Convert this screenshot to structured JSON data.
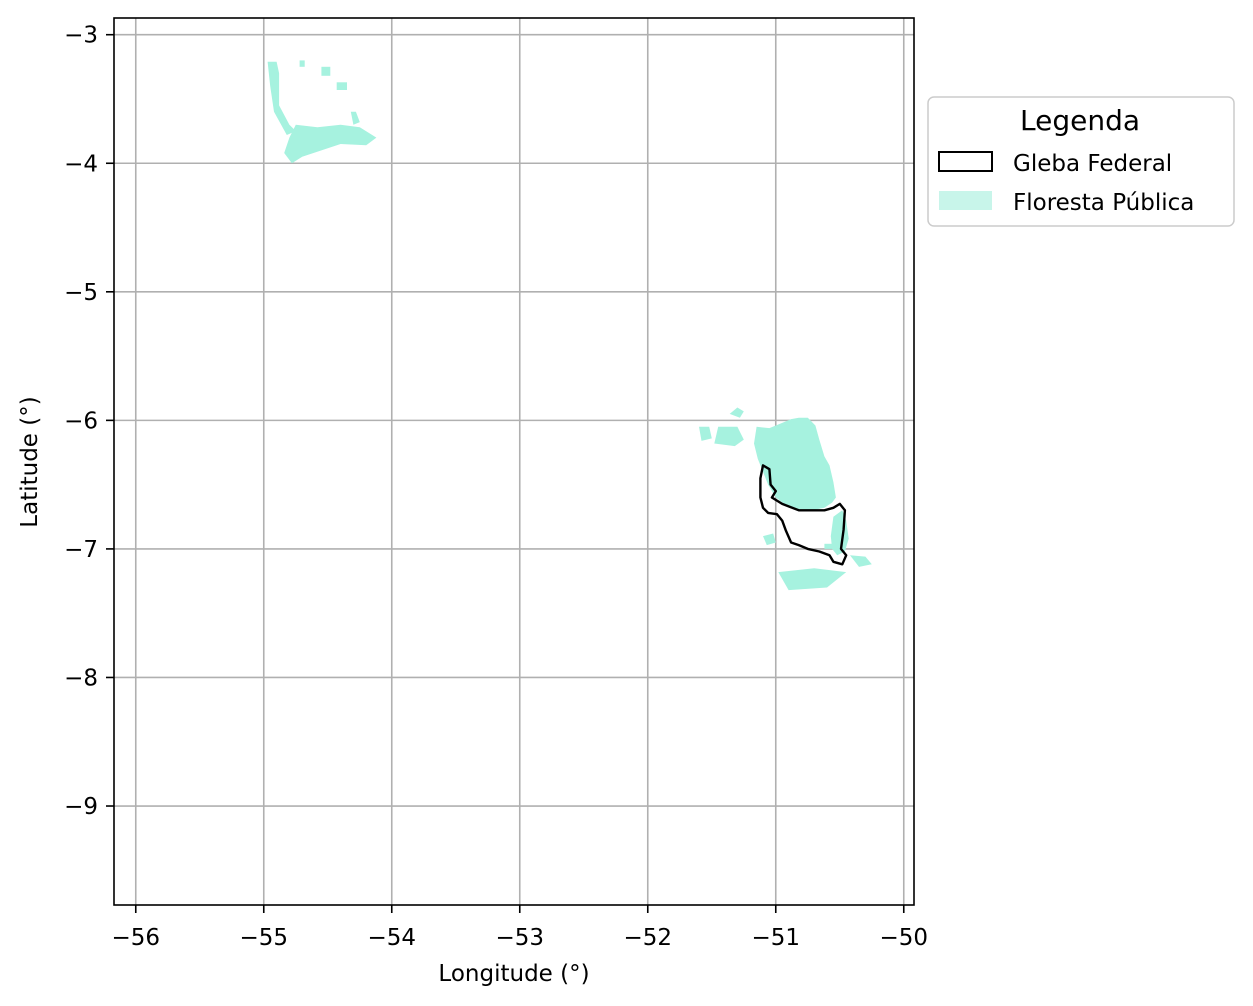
{
  "chart_data": {
    "type": "map",
    "xlabel": "Longitude (°)",
    "ylabel": "Latitude (°)",
    "xlim": [
      -56.17,
      -49.92
    ],
    "ylim": [
      -9.77,
      -2.87
    ],
    "x_ticks": [
      -56,
      -55,
      -54,
      -53,
      -52,
      -51,
      -50
    ],
    "y_ticks": [
      -3,
      -4,
      -5,
      -6,
      -7,
      -8,
      -9
    ],
    "x_tick_labels": [
      "−56",
      "−55",
      "−54",
      "−53",
      "−52",
      "−51",
      "−50"
    ],
    "y_tick_labels": [
      "−3",
      "−4",
      "−5",
      "−6",
      "−7",
      "−8",
      "−9"
    ],
    "grid": true,
    "legend": {
      "title": "Legenda",
      "placement": "outside-right-top",
      "entries": [
        {
          "label": "Gleba Federal",
          "kind": "outline",
          "color": "#000000"
        },
        {
          "label": "Floresta Pública",
          "kind": "fill",
          "color": "#a6f2df"
        }
      ]
    },
    "colors": {
      "floresta_publica": "#a6f2df",
      "floresta_publica_legend": "#c8f5ea",
      "gleba_federal": "#000000",
      "grid": "#b0b0b0"
    },
    "floresta_publica": {
      "main_block": [
        [
          -51.15,
          -6.05
        ],
        [
          -51.05,
          -6.06
        ],
        [
          -51.0,
          -6.04
        ],
        [
          -50.95,
          -6.02
        ],
        [
          -50.88,
          -5.99
        ],
        [
          -50.82,
          -5.98
        ],
        [
          -50.75,
          -5.98
        ],
        [
          -50.69,
          -6.04
        ],
        [
          -50.66,
          -6.15
        ],
        [
          -50.62,
          -6.28
        ],
        [
          -50.58,
          -6.35
        ],
        [
          -50.55,
          -6.48
        ],
        [
          -50.53,
          -6.6
        ],
        [
          -50.56,
          -6.64
        ],
        [
          -50.62,
          -6.68
        ],
        [
          -50.72,
          -6.7
        ],
        [
          -50.82,
          -6.7
        ],
        [
          -50.92,
          -6.66
        ],
        [
          -51.0,
          -6.6
        ],
        [
          -51.06,
          -6.5
        ],
        [
          -51.1,
          -6.4
        ],
        [
          -51.14,
          -6.3
        ],
        [
          -51.17,
          -6.18
        ]
      ],
      "south_tail": [
        [
          -50.55,
          -6.75
        ],
        [
          -50.48,
          -6.7
        ],
        [
          -50.45,
          -6.78
        ],
        [
          -50.43,
          -6.92
        ],
        [
          -50.46,
          -7.02
        ],
        [
          -50.52,
          -7.05
        ],
        [
          -50.56,
          -7.0
        ],
        [
          -50.57,
          -6.9
        ]
      ],
      "north_west_fragments": [
        [
          [
            -54.97,
            -3.21
          ],
          [
            -54.9,
            -3.21
          ],
          [
            -54.88,
            -3.3
          ],
          [
            -54.88,
            -3.55
          ],
          [
            -54.8,
            -3.7
          ],
          [
            -54.75,
            -3.75
          ],
          [
            -54.82,
            -3.78
          ],
          [
            -54.92,
            -3.6
          ],
          [
            -54.95,
            -3.4
          ]
        ],
        [
          [
            -54.75,
            -3.7
          ],
          [
            -54.58,
            -3.72
          ],
          [
            -54.4,
            -3.7
          ],
          [
            -54.25,
            -3.72
          ],
          [
            -54.12,
            -3.8
          ],
          [
            -54.2,
            -3.86
          ],
          [
            -54.4,
            -3.85
          ],
          [
            -54.55,
            -3.9
          ],
          [
            -54.7,
            -3.95
          ],
          [
            -54.78,
            -4.0
          ],
          [
            -54.84,
            -3.92
          ],
          [
            -54.8,
            -3.8
          ]
        ],
        [
          [
            -54.55,
            -3.25
          ],
          [
            -54.48,
            -3.25
          ],
          [
            -54.48,
            -3.32
          ],
          [
            -54.55,
            -3.32
          ]
        ],
        [
          [
            -54.43,
            -3.37
          ],
          [
            -54.35,
            -3.37
          ],
          [
            -54.35,
            -3.43
          ],
          [
            -54.43,
            -3.43
          ]
        ],
        [
          [
            -54.32,
            -3.6
          ],
          [
            -54.28,
            -3.6
          ],
          [
            -54.25,
            -3.68
          ],
          [
            -54.3,
            -3.7
          ]
        ],
        [
          [
            -54.72,
            -3.2
          ],
          [
            -54.68,
            -3.2
          ],
          [
            -54.68,
            -3.25
          ],
          [
            -54.72,
            -3.25
          ]
        ]
      ],
      "east_fragments": [
        [
          [
            -51.36,
            -5.95
          ],
          [
            -51.3,
            -5.9
          ],
          [
            -51.25,
            -5.93
          ],
          [
            -51.28,
            -5.98
          ]
        ],
        [
          [
            -51.45,
            -6.05
          ],
          [
            -51.3,
            -6.05
          ],
          [
            -51.25,
            -6.15
          ],
          [
            -51.32,
            -6.2
          ],
          [
            -51.48,
            -6.18
          ]
        ],
        [
          [
            -51.6,
            -6.05
          ],
          [
            -51.52,
            -6.05
          ],
          [
            -51.5,
            -6.14
          ],
          [
            -51.58,
            -6.16
          ]
        ],
        [
          [
            -50.42,
            -7.05
          ],
          [
            -50.3,
            -7.06
          ],
          [
            -50.25,
            -7.12
          ],
          [
            -50.35,
            -7.14
          ]
        ],
        [
          [
            -50.98,
            -7.18
          ],
          [
            -50.7,
            -7.15
          ],
          [
            -50.45,
            -7.18
          ],
          [
            -50.6,
            -7.3
          ],
          [
            -50.9,
            -7.32
          ]
        ],
        [
          [
            -51.1,
            -6.9
          ],
          [
            -51.02,
            -6.88
          ],
          [
            -51.0,
            -6.95
          ],
          [
            -51.07,
            -6.97
          ]
        ],
        [
          [
            -50.62,
            -6.96
          ],
          [
            -50.55,
            -6.96
          ],
          [
            -50.55,
            -7.0
          ],
          [
            -50.62,
            -7.0
          ]
        ]
      ]
    },
    "gleba_federal": [
      [
        -51.1,
        -6.35
      ],
      [
        -51.05,
        -6.38
      ],
      [
        -51.04,
        -6.5
      ],
      [
        -51.0,
        -6.55
      ],
      [
        -51.03,
        -6.6
      ],
      [
        -50.95,
        -6.65
      ],
      [
        -50.82,
        -6.7
      ],
      [
        -50.72,
        -6.7
      ],
      [
        -50.62,
        -6.7
      ],
      [
        -50.55,
        -6.68
      ],
      [
        -50.5,
        -6.65
      ],
      [
        -50.46,
        -6.7
      ],
      [
        -50.47,
        -6.85
      ],
      [
        -50.49,
        -7.0
      ],
      [
        -50.45,
        -7.05
      ],
      [
        -50.48,
        -7.12
      ],
      [
        -50.55,
        -7.1
      ],
      [
        -50.58,
        -7.05
      ],
      [
        -50.66,
        -7.02
      ],
      [
        -50.75,
        -7.0
      ],
      [
        -50.82,
        -6.97
      ],
      [
        -50.88,
        -6.95
      ],
      [
        -50.92,
        -6.86
      ],
      [
        -50.95,
        -6.78
      ],
      [
        -50.99,
        -6.73
      ],
      [
        -51.06,
        -6.72
      ],
      [
        -51.1,
        -6.68
      ],
      [
        -51.12,
        -6.6
      ],
      [
        -51.12,
        -6.45
      ]
    ]
  }
}
